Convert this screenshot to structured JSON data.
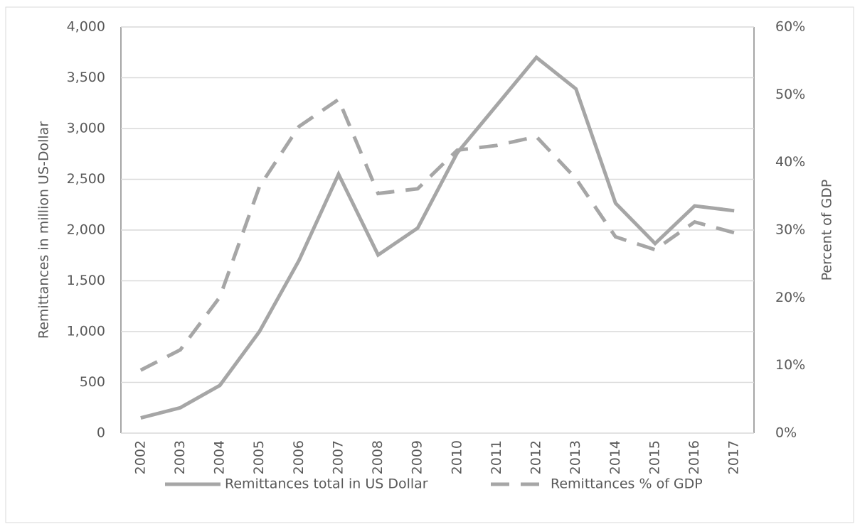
{
  "chart_data": {
    "type": "line",
    "categories": [
      "2002",
      "2003",
      "2004",
      "2005",
      "2006",
      "2007",
      "2008",
      "2009",
      "2010",
      "2011",
      "2012",
      "2013",
      "2014",
      "2015",
      "2016",
      "2017"
    ],
    "series": [
      {
        "name": "Remittances total in US Dollar",
        "color": "#a6a6a6",
        "dash": false,
        "values": [
          150,
          250,
          470,
          1000,
          1700,
          2550,
          1755,
          2020,
          2760,
          3230,
          3700,
          3390,
          2265,
          1867,
          2238,
          2190
        ]
      },
      {
        "name": "Remittances % of GDP",
        "color": "#a6a6a6",
        "dash": true,
        "axis": "y2",
        "values": [
          9.3,
          12.3,
          20.1,
          36.4,
          45.3,
          49.3,
          35.4,
          36.1,
          41.8,
          42.5,
          43.8,
          37.6,
          29,
          27.1,
          31.2,
          29.6
        ]
      }
    ],
    "ylabel": "Remittances in million US-Dollar",
    "y2label": "Percent of GDP",
    "ylim": [
      0,
      4000
    ],
    "yticks": [
      0,
      500,
      {
        "value": 1000,
        "label": "1,000"
      },
      {
        "value": 1500,
        "label": "1,500"
      },
      {
        "value": 2000,
        "label": "2,000"
      },
      {
        "value": 2500,
        "label": "2,500"
      },
      {
        "value": 3000,
        "label": "3,000"
      },
      {
        "value": 3500,
        "label": "3,500"
      },
      {
        "value": 4000,
        "label": "4,000"
      }
    ],
    "y2lim": [
      0,
      60
    ],
    "y2ticks": [
      {
        "value": 0,
        "label": "0%"
      },
      {
        "value": 10,
        "label": "10%"
      },
      {
        "value": 20,
        "label": "20%"
      },
      {
        "value": 30,
        "label": "30%"
      },
      {
        "value": 40,
        "label": "40%"
      },
      {
        "value": 50,
        "label": "50%"
      },
      {
        "value": 60,
        "label": "60%"
      }
    ],
    "grid": true,
    "legend": "bottom"
  }
}
